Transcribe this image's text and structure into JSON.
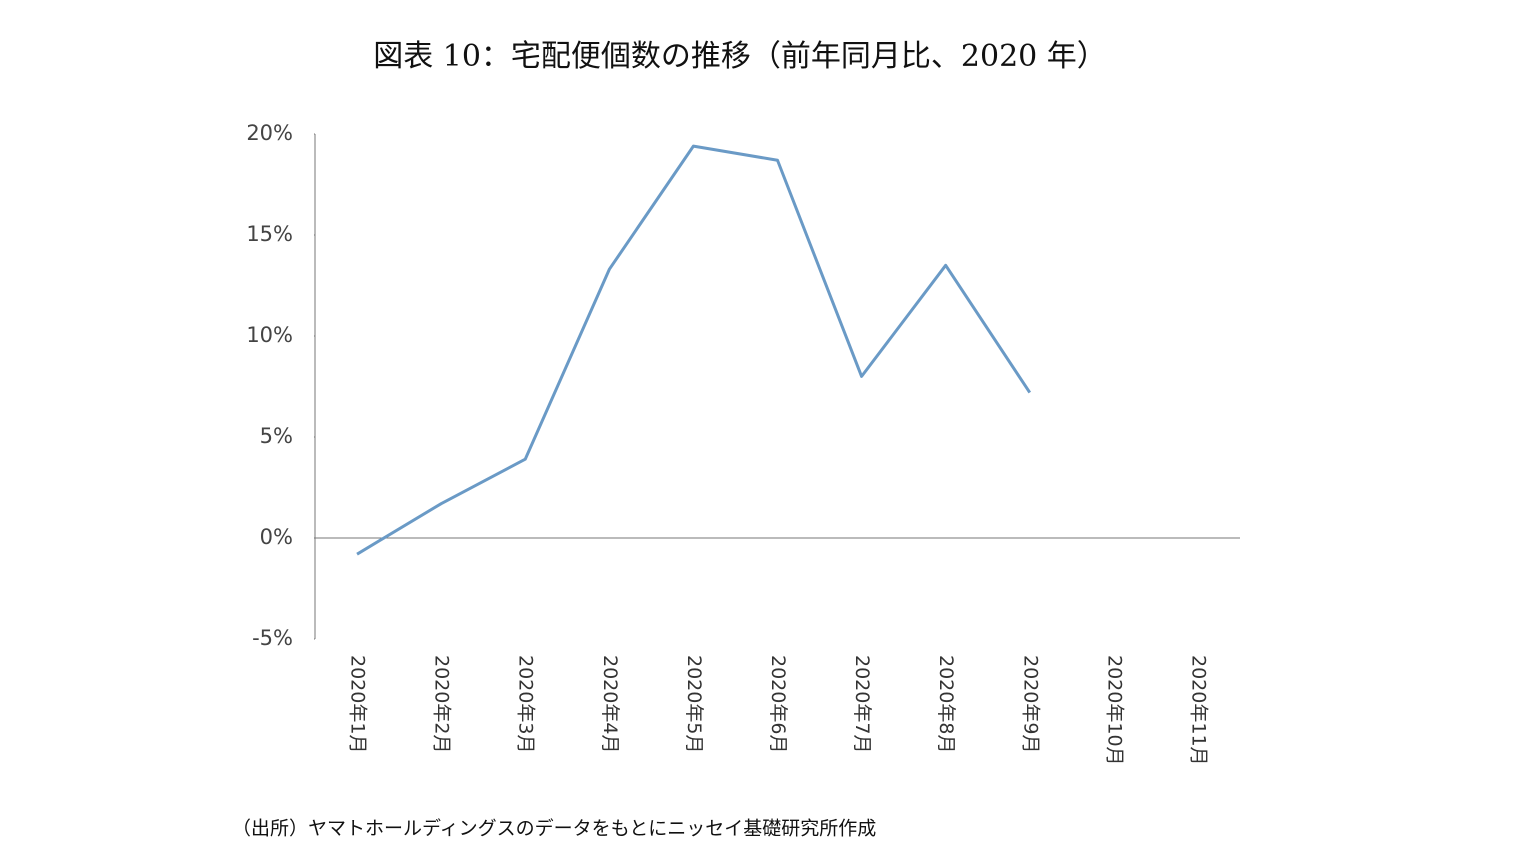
{
  "chart_data": {
    "type": "line",
    "title": "図表 10：宅配便個数の推移（前年同月比、2020 年）",
    "source": "（出所）ヤマトホールディングスのデータをもとにニッセイ基礎研究所作成",
    "categories": [
      "2020年1月",
      "2020年2月",
      "2020年3月",
      "2020年4月",
      "2020年5月",
      "2020年6月",
      "2020年7月",
      "2020年8月",
      "2020年9月",
      "2020年10月",
      "2020年11月"
    ],
    "series": [
      {
        "name": "宅配便個数",
        "color": "#6a9ac6",
        "values": [
          -0.8,
          1.7,
          3.9,
          13.3,
          19.4,
          18.7,
          8.0,
          13.5,
          7.2,
          null,
          null
        ]
      }
    ],
    "ylim": [
      -5,
      20
    ],
    "yticks": [
      {
        "value": -5,
        "label": "-5%"
      },
      {
        "value": 0,
        "label": "0%"
      },
      {
        "value": 5,
        "label": "5%"
      },
      {
        "value": 10,
        "label": "10%"
      },
      {
        "value": 15,
        "label": "15%"
      },
      {
        "value": 20,
        "label": "20%"
      }
    ],
    "grid": false
  }
}
